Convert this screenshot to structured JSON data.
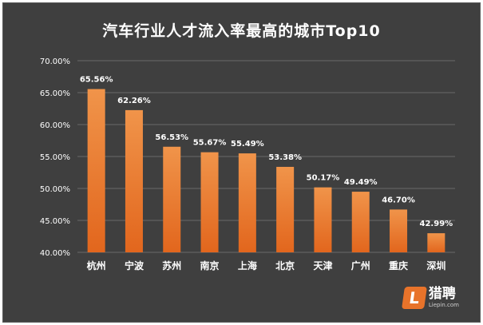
{
  "chart_data": {
    "type": "bar",
    "title": "汽车行业人才流入率最高的城市Top10",
    "categories": [
      "杭州",
      "宁波",
      "苏州",
      "南京",
      "上海",
      "北京",
      "天津",
      "广州",
      "重庆",
      "深圳"
    ],
    "values": [
      65.56,
      62.26,
      56.53,
      55.67,
      55.49,
      53.38,
      50.17,
      49.49,
      46.7,
      42.99
    ],
    "data_labels": [
      "65.56%",
      "62.26%",
      "56.53%",
      "55.67%",
      "55.49%",
      "53.38%",
      "50.17%",
      "49.49%",
      "46.70%",
      "42.99%"
    ],
    "ylim": [
      40,
      70
    ],
    "y_ticks": [
      40,
      45,
      50,
      55,
      60,
      65,
      70
    ],
    "y_tick_labels": [
      "40.00%",
      "45.00%",
      "50.00%",
      "55.00%",
      "60.00%",
      "65.00%",
      "70.00%"
    ],
    "xlabel": "",
    "ylabel": "",
    "grid": true,
    "colors": {
      "background": "#3f3f3f",
      "bar_top": "#f0944a",
      "bar_bottom": "#e2661d",
      "grid": "#6a6a6a",
      "text": "#ffffff"
    }
  },
  "logo": {
    "mark": "L",
    "name": "猎聘",
    "url": "Liepin.com"
  }
}
